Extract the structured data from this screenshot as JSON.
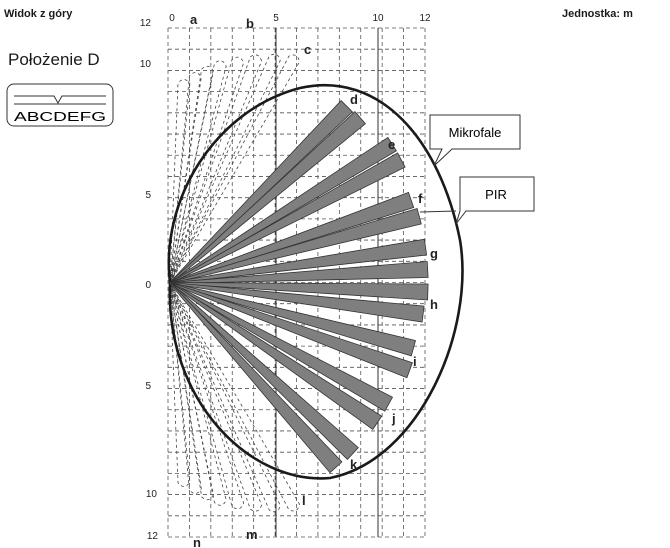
{
  "header": {
    "title": "Widok z góry",
    "unit": "Jednostka: m",
    "position": "Położenie D",
    "selector_letters": "ABCDEFG"
  },
  "axes": {
    "top_ticks": [
      "0",
      "5",
      "10",
      "12"
    ],
    "left_ticks_upper": [
      "12",
      "10",
      "5"
    ],
    "left_tick_zero": "0",
    "left_ticks_lower": [
      "5",
      "10",
      "12"
    ]
  },
  "callouts": {
    "microwave": "Mikrofale",
    "pir": "PIR"
  },
  "zone_labels": [
    "a",
    "b",
    "c",
    "d",
    "e",
    "f",
    "g",
    "h",
    "i",
    "j",
    "k",
    "l",
    "m",
    "n"
  ]
}
